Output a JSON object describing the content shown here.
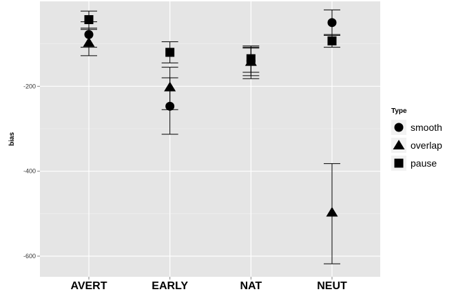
{
  "chart_data": {
    "type": "scatter",
    "title": "",
    "xlabel": "",
    "ylabel": "bias",
    "categories": [
      "AVERT",
      "EARLY",
      "NAT",
      "NEUT"
    ],
    "ylim": [
      -650,
      0
    ],
    "yticks": [
      -200,
      -400,
      -600
    ],
    "ytick_labels": [
      "-200",
      "-400",
      "-600"
    ],
    "grid": true,
    "panel_color": "#e5e5e5",
    "legend": {
      "title": "Type",
      "position": "right"
    },
    "series": [
      {
        "name": "smooth",
        "marker": "circle",
        "values": [
          -78,
          -247,
          -140,
          -50
        ],
        "error_low": [
          -108,
          -313,
          -175,
          -80
        ],
        "error_high": [
          -48,
          -180,
          -105,
          -20
        ]
      },
      {
        "name": "overlap",
        "marker": "triangle",
        "values": [
          -97,
          -202,
          -142,
          -497
        ],
        "error_low": [
          -128,
          -255,
          -182,
          -618
        ],
        "error_high": [
          -66,
          -155,
          -108,
          -382
        ]
      },
      {
        "name": "pause",
        "marker": "square",
        "values": [
          -43,
          -120,
          -135,
          -93
        ],
        "error_low": [
          -63,
          -145,
          -167,
          -108
        ],
        "error_high": [
          -23,
          -95,
          -110,
          -78
        ]
      }
    ]
  }
}
